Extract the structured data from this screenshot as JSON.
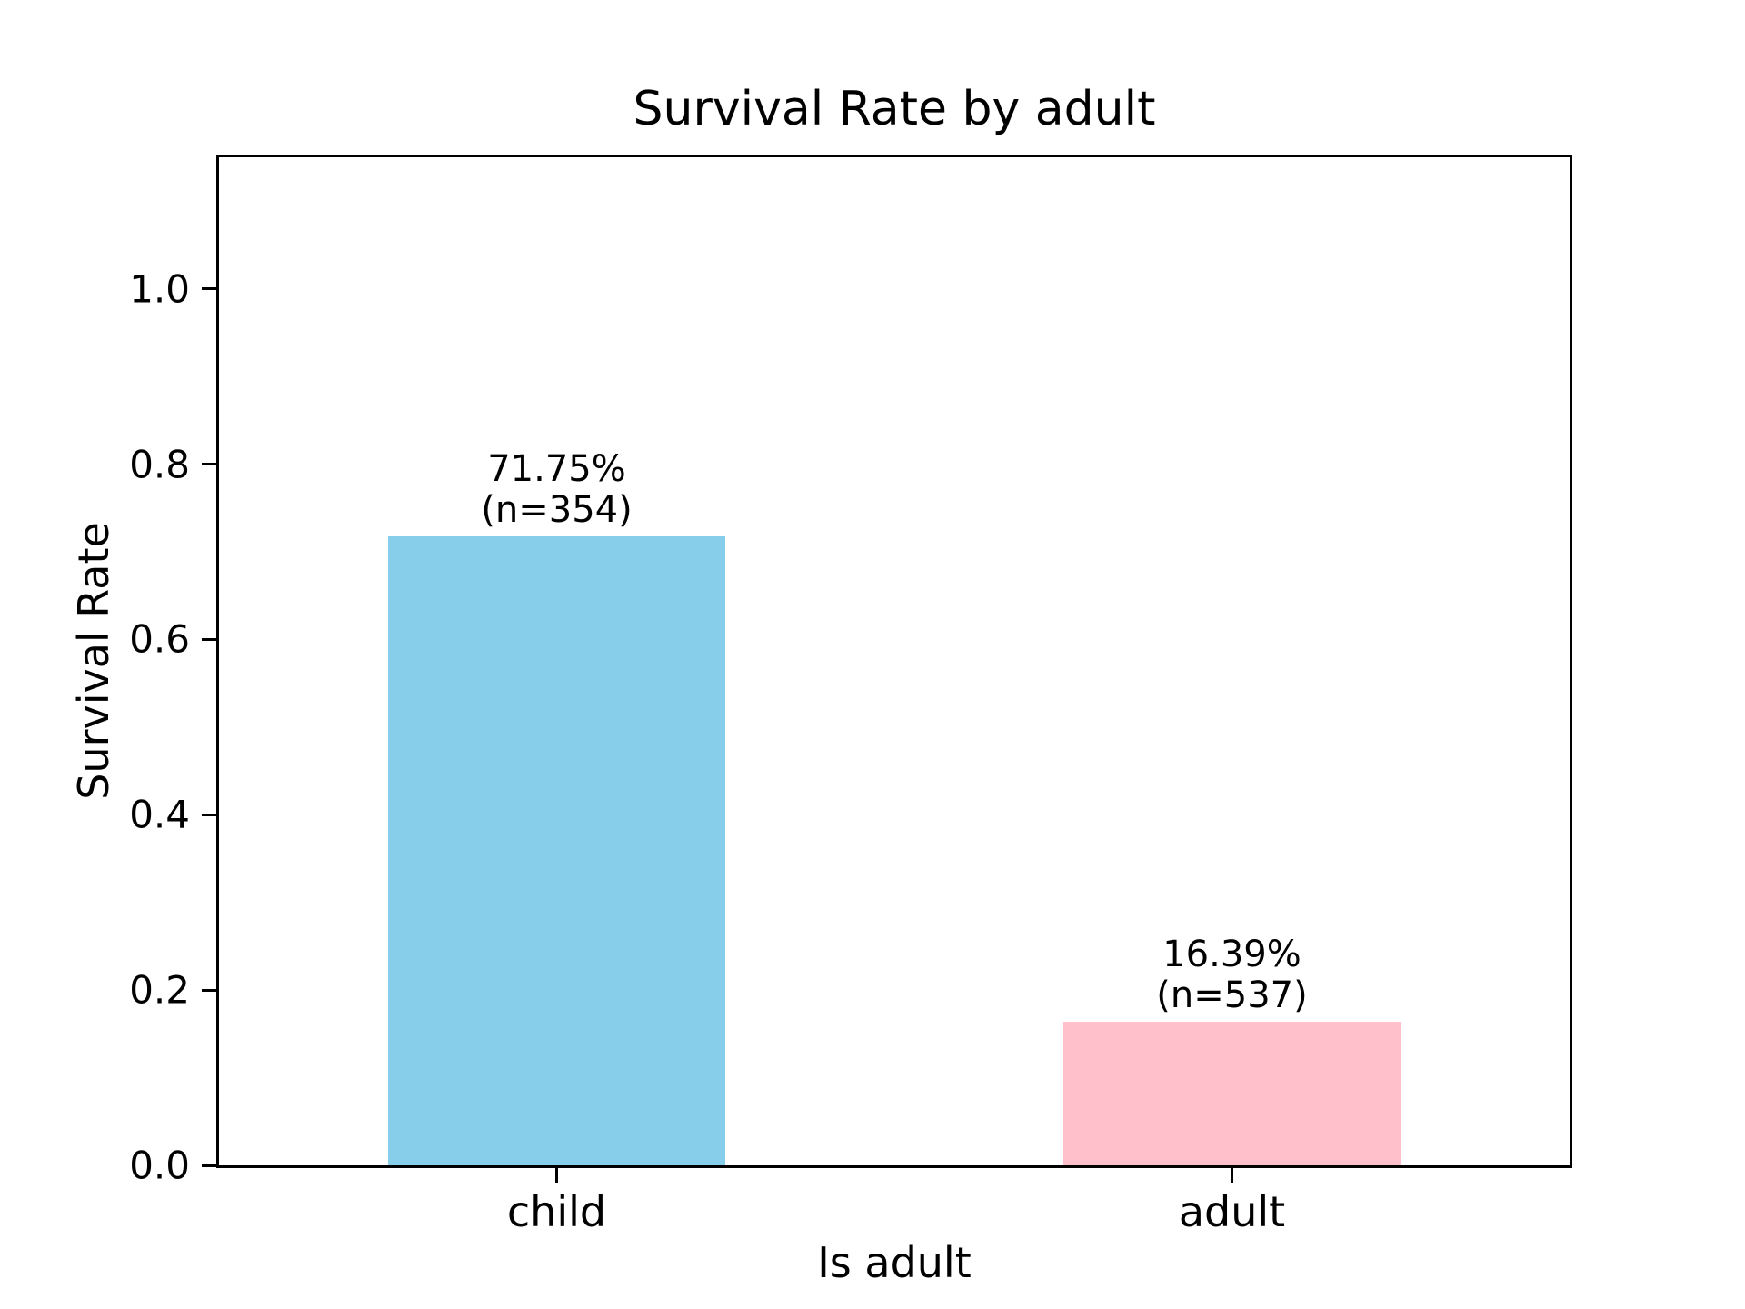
{
  "chart_data": {
    "type": "bar",
    "title": "Survival Rate by adult",
    "xlabel": "Is adult",
    "ylabel": "Survival Rate",
    "categories": [
      "child",
      "adult"
    ],
    "values": [
      0.7175,
      0.1639
    ],
    "counts": [
      354,
      537
    ],
    "bar_labels": [
      [
        "71.75%",
        "(n=354)"
      ],
      [
        "16.39%",
        "(n=537)"
      ]
    ],
    "bar_colors": [
      "#87CEEB",
      "#FFC0CB"
    ],
    "yticks": [
      "0.0",
      "0.2",
      "0.4",
      "0.6",
      "0.8",
      "1.0"
    ],
    "ylim": [
      0,
      1.15
    ],
    "bar_width_units": 0.5,
    "grid": false,
    "legend": "none",
    "axis_color": "#000000",
    "background_color": "#ffffff"
  }
}
